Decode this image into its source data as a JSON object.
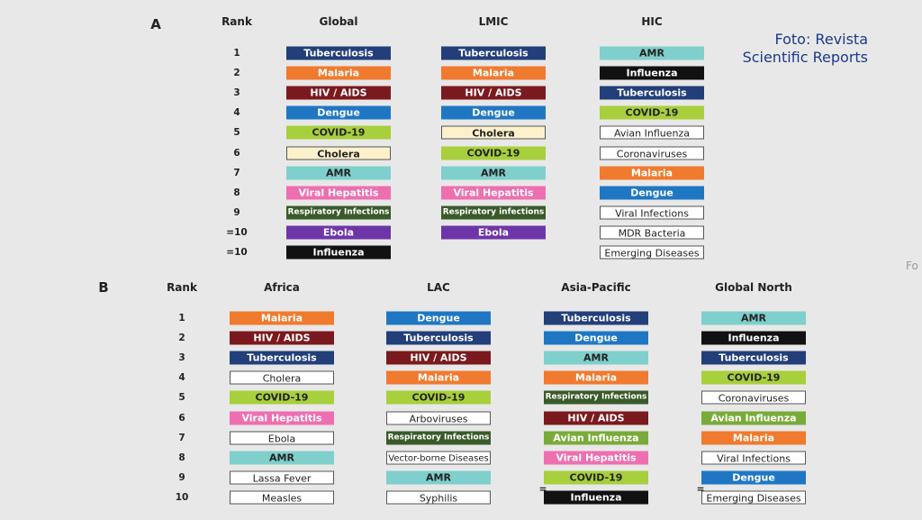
{
  "panels": [
    {
      "label": "A",
      "rank_header": "Rank",
      "ranks": [
        1,
        2,
        3,
        4,
        5,
        6,
        7,
        8,
        9,
        "=10",
        "=10"
      ],
      "columns": [
        {
          "header": "Global",
          "items": [
            {
              "label": "Tuberculosis",
              "color": "#233f7a"
            },
            {
              "label": "Malaria",
              "color": "#f07a2e"
            },
            {
              "label": "HIV / AIDS",
              "color": "#7b1a1e"
            },
            {
              "label": "Dengue",
              "color": "#1f77c4"
            },
            {
              "label": "COVID-19",
              "color": "#a8cf3c"
            },
            {
              "label": "Cholera",
              "color": "#fdf1cc"
            },
            {
              "label": "AMR",
              "color": "#7fcfcc"
            },
            {
              "label": "Viral Hepatitis",
              "color": "#ee6fb0"
            },
            {
              "label": "Respiratory Infections",
              "color": "#3a5a2a"
            },
            {
              "label": "Ebola",
              "color": "#6e35a8"
            },
            {
              "label": "Influenza",
              "color": "#111111"
            }
          ]
        },
        {
          "header": "LMIC",
          "items": [
            {
              "label": "Tuberculosis",
              "color": "#233f7a"
            },
            {
              "label": "Malaria",
              "color": "#f07a2e"
            },
            {
              "label": "HIV / AIDS",
              "color": "#7b1a1e"
            },
            {
              "label": "Dengue",
              "color": "#1f77c4"
            },
            {
              "label": "Cholera",
              "color": "#fdf1cc"
            },
            {
              "label": "COVID-19",
              "color": "#a8cf3c"
            },
            {
              "label": "AMR",
              "color": "#7fcfcc"
            },
            {
              "label": "Viral Hepatitis",
              "color": "#ee6fb0"
            },
            {
              "label": "Respiratory infections",
              "color": "#3a5a2a"
            },
            {
              "label": "Ebola",
              "color": "#6e35a8"
            }
          ]
        },
        {
          "header": "HIC",
          "items": [
            {
              "label": "AMR",
              "color": "#7fcfcc"
            },
            {
              "label": "Influenza",
              "color": "#111111"
            },
            {
              "label": "Tuberculosis",
              "color": "#233f7a"
            },
            {
              "label": "COVID-19",
              "color": "#a8cf3c"
            },
            {
              "label": "Avian Influenza",
              "color": "#ffffff"
            },
            {
              "label": "Coronaviruses",
              "color": "#ffffff"
            },
            {
              "label": "Malaria",
              "color": "#f07a2e"
            },
            {
              "label": "Dengue",
              "color": "#1f77c4"
            },
            {
              "label": "Viral Infections",
              "color": "#ffffff"
            },
            {
              "label": "MDR Bacteria",
              "color": "#ffffff"
            },
            {
              "label": "Emerging Diseases",
              "color": "#ffffff"
            }
          ]
        }
      ]
    },
    {
      "label": "B",
      "rank_header": "Rank",
      "ranks": [
        1,
        2,
        3,
        4,
        5,
        6,
        7,
        8,
        9,
        10
      ],
      "columns": [
        {
          "header": "Africa",
          "items": [
            {
              "label": "Malaria",
              "color": "#f07a2e"
            },
            {
              "label": "HIV / AIDS",
              "color": "#7b1a1e"
            },
            {
              "label": "Tuberculosis",
              "color": "#233f7a"
            },
            {
              "label": "Cholera",
              "color": "#ffffff"
            },
            {
              "label": "COVID-19",
              "color": "#a8cf3c"
            },
            {
              "label": "Viral Hepatitis",
              "color": "#ee6fb0"
            },
            {
              "label": "Ebola",
              "color": "#ffffff"
            },
            {
              "label": "AMR",
              "color": "#7fcfcc"
            },
            {
              "label": "Lassa Fever",
              "color": "#ffffff"
            },
            {
              "label": "Measles",
              "color": "#ffffff"
            }
          ]
        },
        {
          "header": "LAC",
          "items": [
            {
              "label": "Dengue",
              "color": "#1f77c4"
            },
            {
              "label": "Tuberculosis",
              "color": "#233f7a"
            },
            {
              "label": "HIV / AIDS",
              "color": "#7b1a1e"
            },
            {
              "label": "Malaria",
              "color": "#f07a2e"
            },
            {
              "label": "COVID-19",
              "color": "#a8cf3c"
            },
            {
              "label": "Arboviruses",
              "color": "#ffffff"
            },
            {
              "label": "Respiratory Infections",
              "color": "#3a5a2a"
            },
            {
              "label": "Vector-borne Diseases",
              "color": "#ffffff"
            },
            {
              "label": "AMR",
              "color": "#7fcfcc"
            },
            {
              "label": "Syphilis",
              "color": "#ffffff"
            }
          ]
        },
        {
          "header": "Asia-Pacific",
          "items": [
            {
              "label": "Tuberculosis",
              "color": "#233f7a"
            },
            {
              "label": "Dengue",
              "color": "#1f77c4"
            },
            {
              "label": "AMR",
              "color": "#7fcfcc"
            },
            {
              "label": "Malaria",
              "color": "#f07a2e"
            },
            {
              "label": "Respiratory Infections",
              "color": "#3a5a2a"
            },
            {
              "label": "HIV / AIDS",
              "color": "#7b1a1e"
            },
            {
              "label": "Avian Influenza",
              "color": "#7aab3a"
            },
            {
              "label": "Viral Hepatitis",
              "color": "#ee6fb0"
            },
            {
              "label": "COVID-19",
              "color": "#a8cf3c"
            },
            {
              "label": "Influenza",
              "color": "#111111",
              "tie": "="
            }
          ]
        },
        {
          "header": "Global North",
          "items": [
            {
              "label": "AMR",
              "color": "#7fcfcc"
            },
            {
              "label": "Influenza",
              "color": "#111111"
            },
            {
              "label": "Tuberculosis",
              "color": "#233f7a"
            },
            {
              "label": "COVID-19",
              "color": "#a8cf3c"
            },
            {
              "label": "Coronaviruses",
              "color": "#ffffff"
            },
            {
              "label": "Avian Influenza",
              "color": "#7aab3a"
            },
            {
              "label": "Malaria",
              "color": "#f07a2e"
            },
            {
              "label": "Viral Infections",
              "color": "#ffffff"
            },
            {
              "label": "Dengue",
              "color": "#1f77c4"
            },
            {
              "label": "Emerging Diseases",
              "color": "#ffffff",
              "tie": "="
            }
          ]
        }
      ]
    }
  ],
  "caption": [
    "Foto: Revista",
    "Scientific Reports"
  ],
  "edge_text": "Fo"
}
